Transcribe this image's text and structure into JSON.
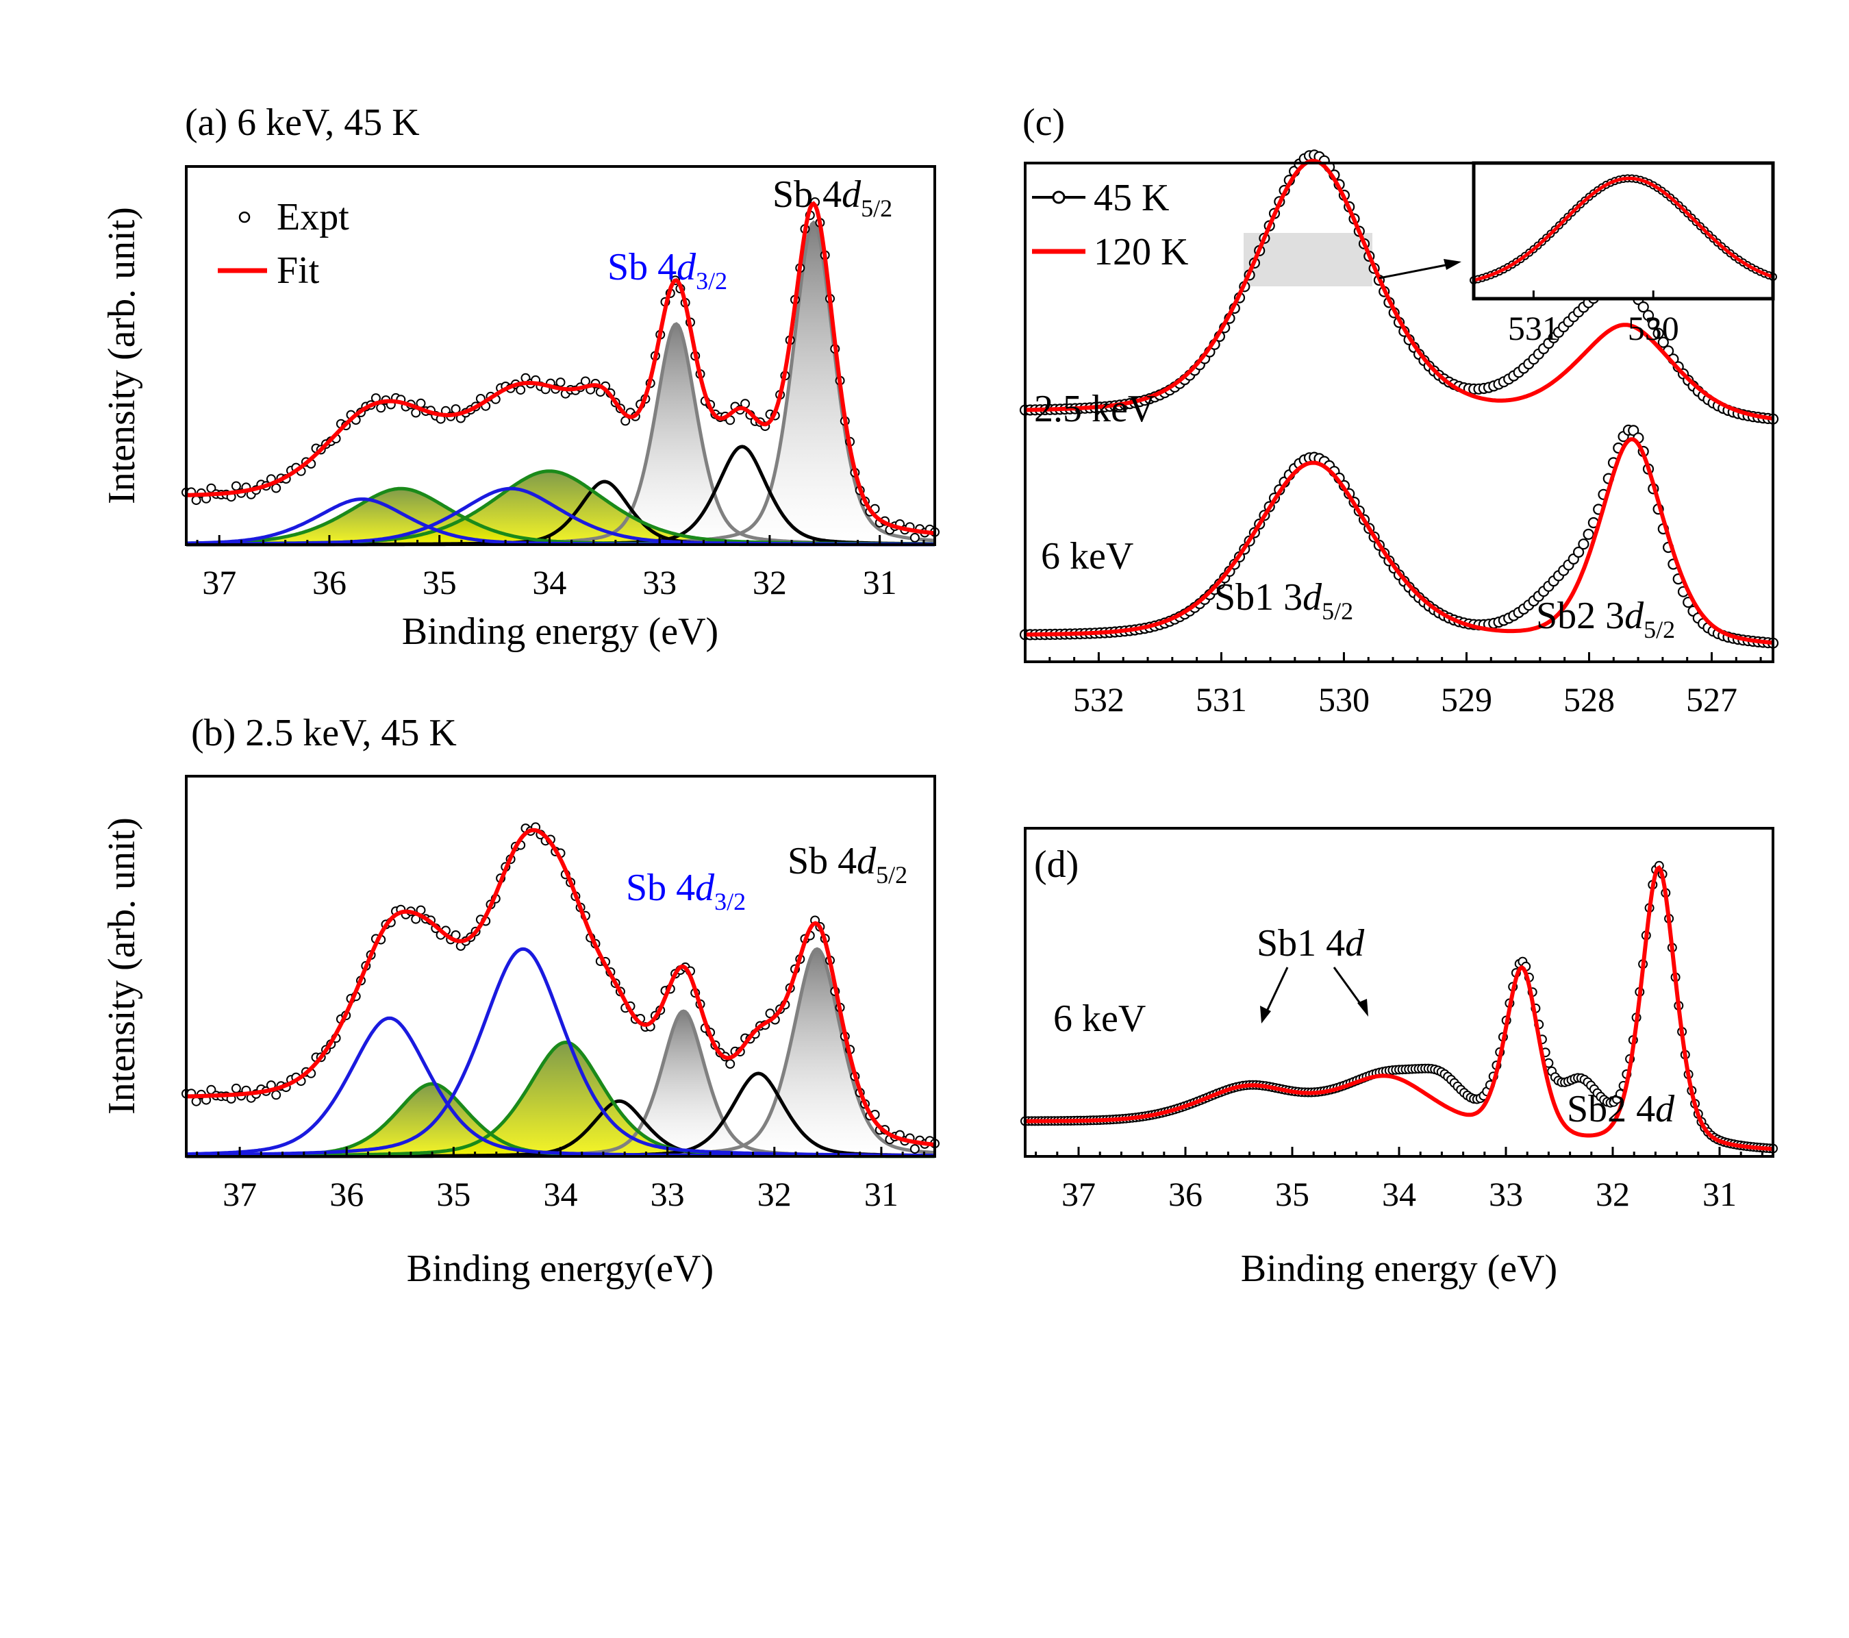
{
  "colors": {
    "expt": "#000000",
    "fit": "#ff0000",
    "d32_comp": "#0000ff",
    "d52_comp": "#000000",
    "sb1_green": "#1a8a1a",
    "sb1_blue": "#1a1adf",
    "sb2_gray": "#808080",
    "fill_yellow": "#eeee00",
    "fill_gray": "#999999"
  },
  "legend": {
    "expt": "Expt",
    "fit": "Fit",
    "t45": "45 K",
    "t120": "120 K"
  },
  "chart_data": [
    {
      "id": "a",
      "type": "line",
      "title": "(a) 6 keV, 45 K",
      "xlabel": "Binding energy (eV)",
      "ylabel": "Intensity (arb. unit)",
      "xlim": [
        37.3,
        30.5
      ],
      "xticks": [
        "37",
        "36",
        "35",
        "34",
        "33",
        "32",
        "31"
      ],
      "ylim": [
        0,
        1.08
      ],
      "labels": {
        "d32": "Sb 4d3/2",
        "d52": "Sb 4d5/2"
      },
      "background": {
        "left": 0.11,
        "right": 0.01
      },
      "components": [
        {
          "name": "Sb2 4d5/2",
          "center": 31.6,
          "amp": 0.92,
          "width": 0.2,
          "color": "#808080",
          "fill": "gray"
        },
        {
          "name": "Sb2 4d3/2",
          "center": 32.85,
          "amp": 0.63,
          "width": 0.2,
          "color": "#808080",
          "fill": "gray"
        },
        {
          "name": "4d5/2 comp",
          "center": 32.25,
          "amp": 0.28,
          "width": 0.24,
          "color": "#000000",
          "fill": "none"
        },
        {
          "name": "4d3/2 comp",
          "center": 33.5,
          "amp": 0.18,
          "width": 0.24,
          "color": "#000000",
          "fill": "none"
        },
        {
          "name": "Sb1 4d5/2 (green)",
          "center": 34.0,
          "amp": 0.21,
          "width": 0.55,
          "color": "#1a8a1a",
          "fill": "yellow"
        },
        {
          "name": "Sb1 4d3/2 (green)",
          "center": 35.35,
          "amp": 0.16,
          "width": 0.5,
          "color": "#1a8a1a",
          "fill": "yellow"
        },
        {
          "name": "Sb1 4d5/2 (blue)",
          "center": 34.35,
          "amp": 0.16,
          "width": 0.5,
          "color": "#1a1adf",
          "fill": "none"
        },
        {
          "name": "Sb1 4d3/2 (blue)",
          "center": 35.7,
          "amp": 0.13,
          "width": 0.45,
          "color": "#1a1adf",
          "fill": "none"
        }
      ]
    },
    {
      "id": "b",
      "type": "line",
      "title": "(b) 2.5 keV, 45 K",
      "xlabel": "Binding energy(eV)",
      "ylabel": "Intensity (arb. unit)",
      "xlim": [
        37.5,
        30.5
      ],
      "xticks": [
        "37",
        "36",
        "35",
        "34",
        "33",
        "32",
        "31"
      ],
      "ylim": [
        0,
        1.1
      ],
      "labels": {
        "d32": "Sb 4d3/2",
        "d52": "Sb 4d5/2"
      },
      "background": {
        "left": 0.14,
        "right": 0.01
      },
      "components": [
        {
          "name": "Sb2 4d5/2",
          "center": 31.6,
          "amp": 0.6,
          "width": 0.24,
          "color": "#808080",
          "fill": "gray"
        },
        {
          "name": "Sb2 4d3/2",
          "center": 32.85,
          "amp": 0.42,
          "width": 0.22,
          "color": "#808080",
          "fill": "gray"
        },
        {
          "name": "4d5/2 comp",
          "center": 32.15,
          "amp": 0.24,
          "width": 0.26,
          "color": "#000000",
          "fill": "none"
        },
        {
          "name": "4d3/2 comp",
          "center": 33.45,
          "amp": 0.16,
          "width": 0.26,
          "color": "#000000",
          "fill": "none"
        },
        {
          "name": "Sb1 4d5/2 (green)",
          "center": 33.95,
          "amp": 0.33,
          "width": 0.38,
          "color": "#1a8a1a",
          "fill": "yellow"
        },
        {
          "name": "Sb1 4d3/2 (green)",
          "center": 35.2,
          "amp": 0.21,
          "width": 0.36,
          "color": "#1a8a1a",
          "fill": "yellow"
        },
        {
          "name": "Sb1 4d5/2 (blue)",
          "center": 34.35,
          "amp": 0.6,
          "width": 0.42,
          "color": "#1a1adf",
          "fill": "none"
        },
        {
          "name": "Sb1 4d3/2 (blue)",
          "center": 35.6,
          "amp": 0.4,
          "width": 0.4,
          "color": "#1a1adf",
          "fill": "none"
        }
      ]
    },
    {
      "id": "c",
      "type": "line",
      "title": "(c)",
      "xlabel": "",
      "xlim": [
        532.6,
        526.5
      ],
      "xticks": [
        "532",
        "531",
        "530",
        "529",
        "528",
        "527"
      ],
      "ylim": [
        0,
        1.9
      ],
      "labels": {
        "e25": "2.5 keV",
        "e6": "6 keV",
        "sb1": "Sb1 3d5/2",
        "sb2": "Sb2 3d5/2"
      },
      "series": [
        {
          "name": "45 K, 2.5 keV",
          "offset": 0.85,
          "peaks": [
            {
              "center": 530.25,
              "amp": 1.0,
              "width": 0.5
            },
            {
              "center": 527.7,
              "amp": 0.42,
              "width": 0.35
            },
            {
              "center": 528.2,
              "amp": 0.2,
              "width": 0.4
            }
          ],
          "base": [
            0.0,
            0.0
          ]
        },
        {
          "name": "120 K, 2.5 keV",
          "offset": 0.85,
          "peaks": [
            {
              "center": 530.25,
              "amp": 0.98,
              "width": 0.52
            },
            {
              "center": 527.7,
              "amp": 0.36,
              "width": 0.42
            }
          ],
          "base": [
            0.0,
            0.0
          ]
        },
        {
          "name": "45 K, 6 keV",
          "offset": 0.0,
          "peaks": [
            {
              "center": 530.25,
              "amp": 0.7,
              "width": 0.5
            },
            {
              "center": 527.65,
              "amp": 0.78,
              "width": 0.25
            },
            {
              "center": 528.2,
              "amp": 0.18,
              "width": 0.3
            }
          ],
          "base": [
            0.0,
            0.0
          ]
        },
        {
          "name": "120 K, 6 keV",
          "offset": 0.0,
          "peaks": [
            {
              "center": 530.25,
              "amp": 0.68,
              "width": 0.52
            },
            {
              "center": 527.65,
              "amp": 0.78,
              "width": 0.28
            }
          ],
          "base": [
            0.0,
            0.0
          ]
        }
      ],
      "inset": {
        "xlim": [
          531.5,
          529.0
        ],
        "xticks": [
          "531",
          "530"
        ],
        "peak_center": 530.2,
        "peak_width": 0.55
      }
    },
    {
      "id": "d",
      "type": "line",
      "title": "(d)",
      "xlabel": "Binding energy (eV)",
      "xlim": [
        37.5,
        30.5
      ],
      "xticks": [
        "37",
        "36",
        "35",
        "34",
        "33",
        "32",
        "31"
      ],
      "ylim": [
        0,
        1.05
      ],
      "labels": {
        "e6": "6 keV",
        "sb1": "Sb1 4d",
        "sb2": "Sb2 4d"
      },
      "series": [
        {
          "name": "45 K",
          "peaks": [
            {
              "center": 31.57,
              "amp": 0.9,
              "width": 0.17
            },
            {
              "center": 32.85,
              "amp": 0.55,
              "width": 0.17
            },
            {
              "center": 32.3,
              "amp": 0.18,
              "width": 0.22
            },
            {
              "center": 33.6,
              "amp": 0.1,
              "width": 0.25
            },
            {
              "center": 34.1,
              "amp": 0.18,
              "width": 0.5
            },
            {
              "center": 35.4,
              "amp": 0.12,
              "width": 0.5
            }
          ]
        },
        {
          "name": "120 K",
          "peaks": [
            {
              "center": 31.57,
              "amp": 0.9,
              "width": 0.17
            },
            {
              "center": 32.85,
              "amp": 0.55,
              "width": 0.17
            },
            {
              "center": 34.1,
              "amp": 0.18,
              "width": 0.5
            },
            {
              "center": 35.4,
              "amp": 0.12,
              "width": 0.5
            }
          ]
        }
      ]
    }
  ]
}
